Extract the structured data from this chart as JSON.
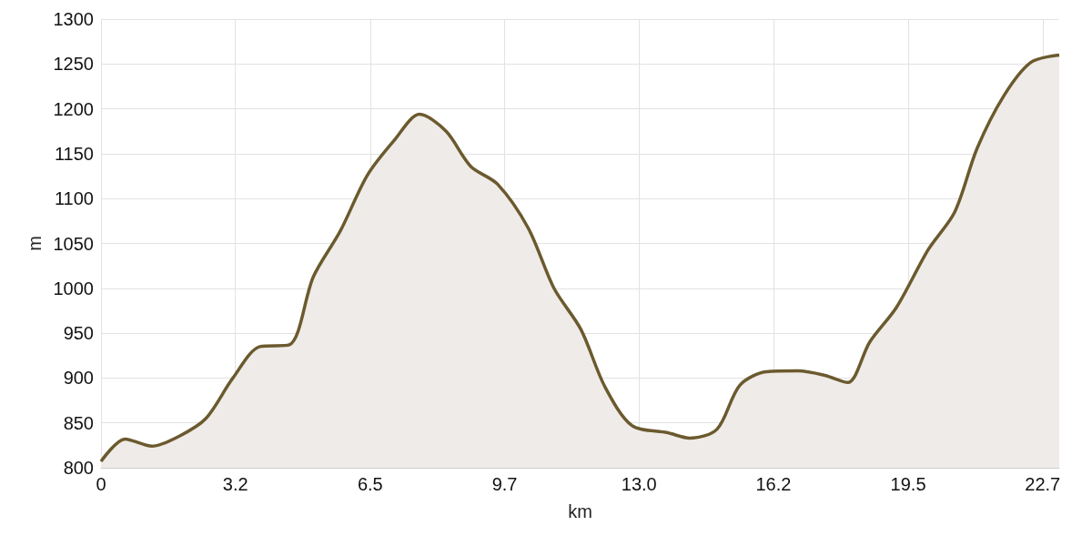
{
  "chart_data": {
    "type": "area",
    "xlabel": "km",
    "ylabel": "m",
    "x": [
      0,
      0.58,
      1.23,
      1.88,
      2.53,
      3.18,
      3.83,
      4.54,
      5.12,
      5.77,
      6.42,
      7.07,
      7.68,
      8.32,
      8.91,
      9.56,
      10.3,
      10.92,
      11.57,
      12.15,
      12.8,
      13.66,
      14.2,
      14.85,
      15.4,
      16.04,
      16.8,
      17.45,
      18.0,
      18.53,
      19.18,
      19.94,
      20.58,
      21.12,
      21.77,
      22.42,
      23.1
    ],
    "series": [
      {
        "color": "#6b5a2e",
        "values": [
          807,
          832,
          824,
          835,
          855,
          900,
          935,
          937,
          1013,
          1064,
          1126,
          1165,
          1194,
          1175,
          1136,
          1116,
          1067,
          1000,
          954,
          890,
          847,
          839,
          833,
          843,
          892,
          907,
          908,
          903,
          895,
          940,
          979,
          1043,
          1085,
          1156,
          1215,
          1252,
          1260
        ]
      }
    ],
    "xlim": [
      0,
      23.1
    ],
    "xticks": [
      0,
      {
        "value": 3.24,
        "label": "3.2"
      },
      {
        "value": 6.49,
        "label": "6.5"
      },
      {
        "value": 9.73,
        "label": "9.7"
      },
      {
        "value": 12.97,
        "label": "13.0"
      },
      {
        "value": 16.21,
        "label": "16.2"
      },
      {
        "value": 19.46,
        "label": "19.5"
      },
      {
        "value": 22.7,
        "label": "22.7"
      }
    ],
    "ylim": [
      800,
      1300
    ],
    "yticks": [
      800,
      850,
      900,
      950,
      1000,
      1050,
      1100,
      1150,
      1200,
      1250,
      1300
    ],
    "grid": true,
    "marker": "none",
    "line_style": "solid"
  }
}
